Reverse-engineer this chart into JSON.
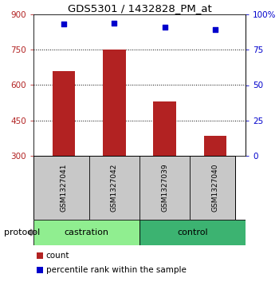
{
  "title": "GDS5301 / 1432828_PM_at",
  "samples": [
    "GSM1327041",
    "GSM1327042",
    "GSM1327039",
    "GSM1327040"
  ],
  "bar_values": [
    660,
    750,
    530,
    385
  ],
  "percentile_values": [
    93,
    94,
    91,
    89
  ],
  "bar_color": "#b22222",
  "dot_color": "#0000cc",
  "ylim_left": [
    300,
    900
  ],
  "ylim_right": [
    0,
    100
  ],
  "yticks_left": [
    300,
    450,
    600,
    750,
    900
  ],
  "yticks_right": [
    0,
    25,
    50,
    75,
    100
  ],
  "ytick_labels_right": [
    "0",
    "25",
    "50",
    "75",
    "100%"
  ],
  "grid_lines": [
    450,
    600,
    750
  ],
  "groups": [
    {
      "label": "castration",
      "color": "#90EE90"
    },
    {
      "label": "control",
      "color": "#3CB371"
    }
  ],
  "protocol_label": "protocol",
  "legend_count_label": "count",
  "legend_pct_label": "percentile rank within the sample",
  "plot_bg": "#ffffff",
  "sample_box_color": "#c8c8c8"
}
